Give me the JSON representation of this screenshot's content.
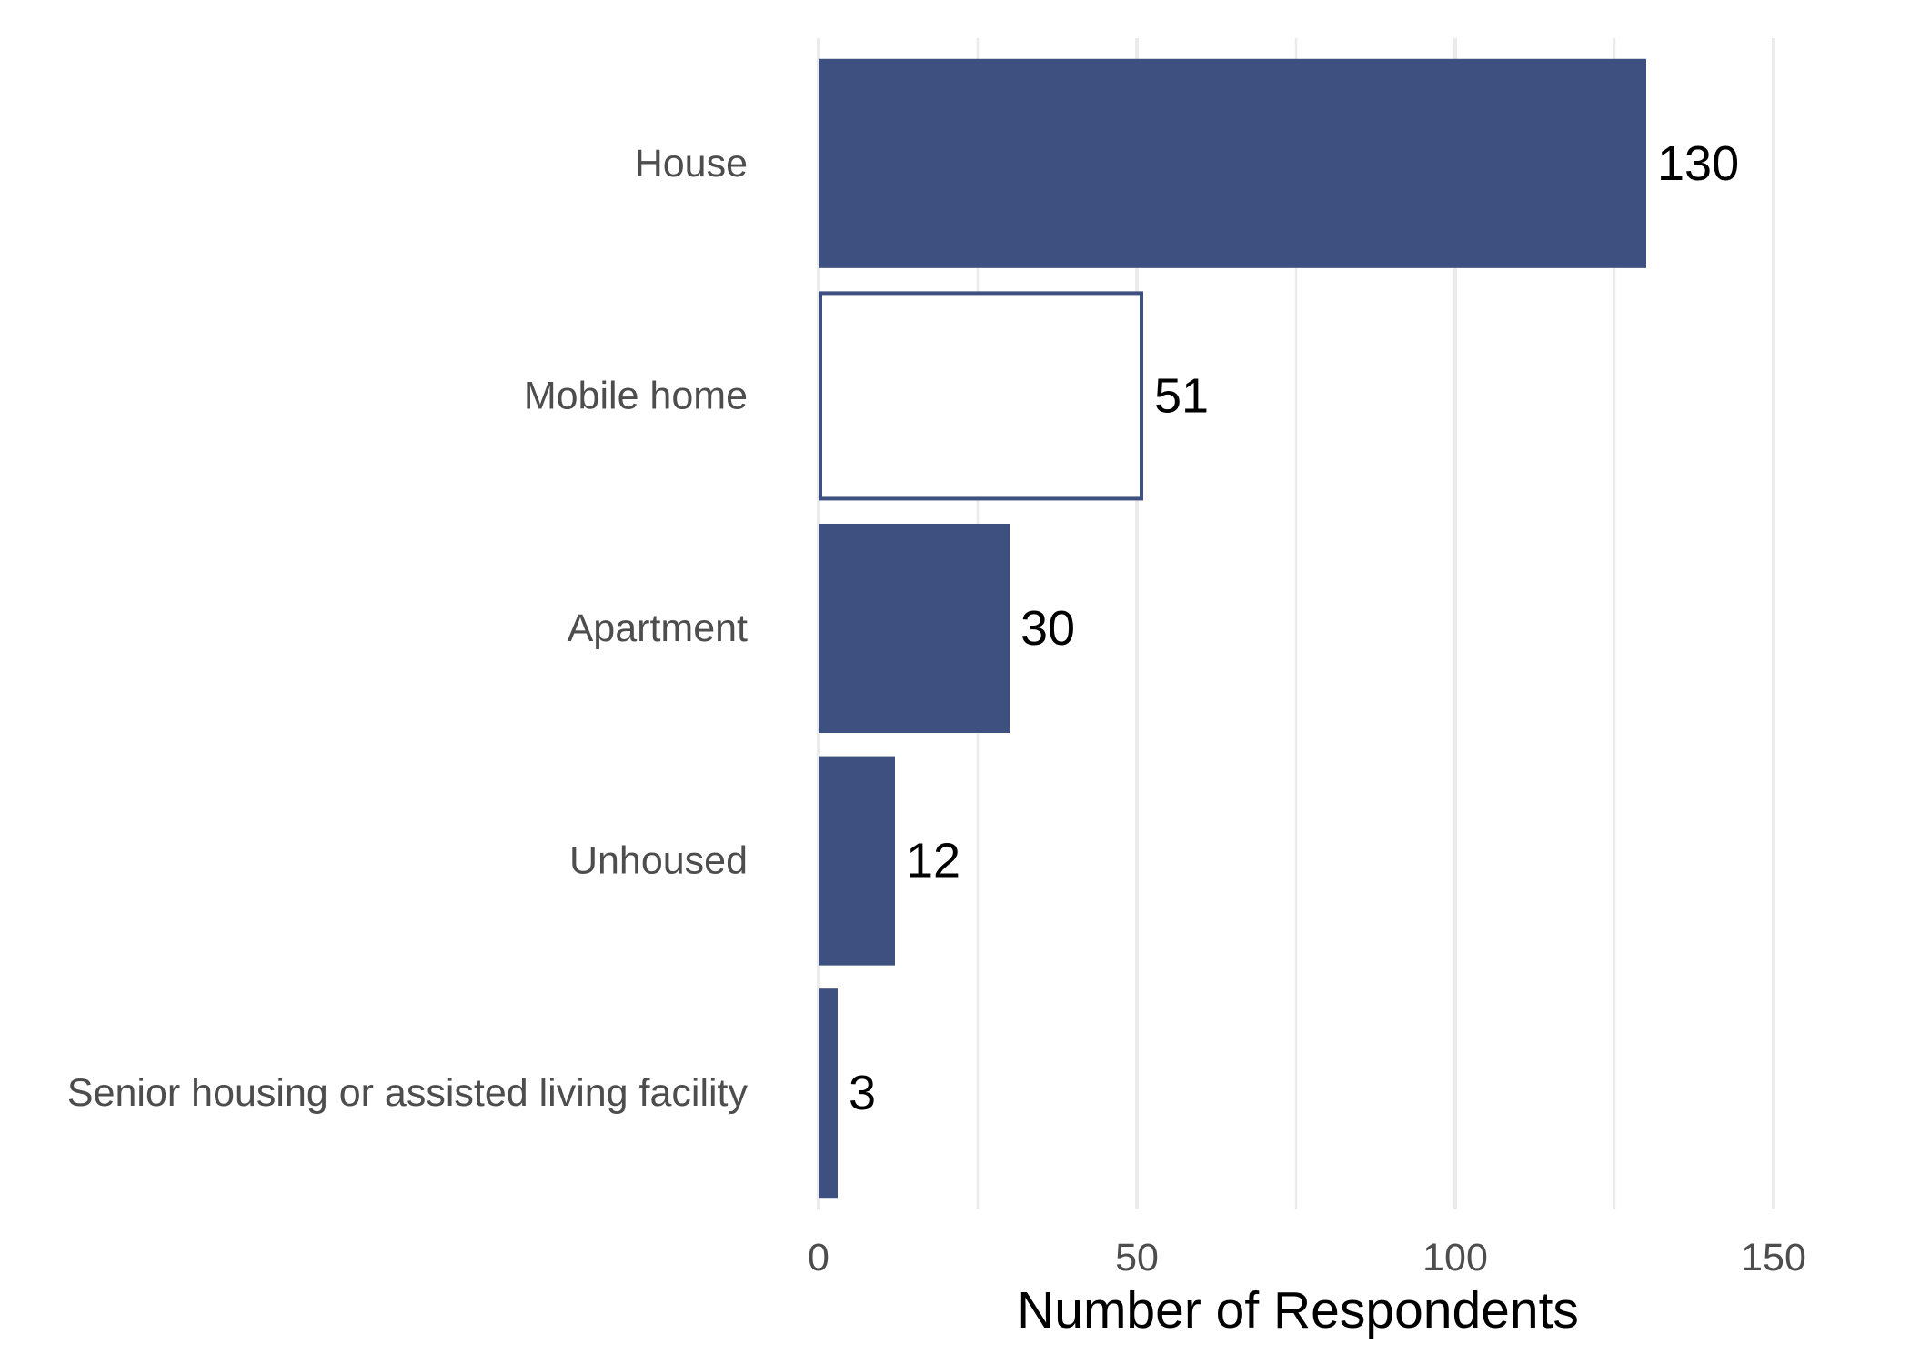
{
  "chart_data": {
    "type": "bar",
    "orientation": "horizontal",
    "categories": [
      "House",
      "Mobile home",
      "Apartment",
      "Unhoused",
      "Senior housing or assisted living facility"
    ],
    "values": [
      130,
      51,
      30,
      12,
      3
    ],
    "highlighted": [
      "Mobile home"
    ],
    "title": "",
    "xlabel": "Number of Respondents",
    "ylabel": "",
    "xlim": [
      0,
      150
    ],
    "x_ticks": [
      0,
      50,
      100,
      150
    ],
    "grid": "vertical",
    "legend": "none",
    "colors": {
      "bar_fill": "#3d5080",
      "highlight_fill": "#ffffff",
      "highlight_stroke": "#3d5080",
      "grid": "#ebebeb",
      "text": "#4d4d4d",
      "value_text": "#000000"
    }
  }
}
